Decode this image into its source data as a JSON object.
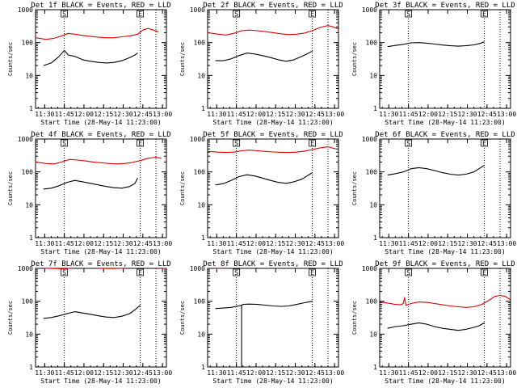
{
  "style": {
    "events_color": "#000000",
    "lld_color": "#e00000",
    "axis_color": "#000000",
    "background": "#ffffff"
  },
  "chart_data": [
    {
      "type": "line",
      "detector": "1f",
      "title": "Det 1f BLACK = Events, RED = LLD",
      "xlabel": "Start Time (28-May-14 11:23:00)",
      "ylabel": "Counts/sec",
      "y_scale": "log",
      "ylim": [
        1,
        1000
      ],
      "y_tick_labels": [
        "1",
        "10",
        "100",
        "1000"
      ],
      "xlim_min": [
        0,
        100
      ],
      "x_tick_labels": [
        "11:30",
        "11:45",
        "12:00",
        "12:15",
        "12:30",
        "12:45",
        "13:00"
      ],
      "x_tick_min": [
        7,
        22,
        37,
        52,
        67,
        82,
        97
      ],
      "markers": [
        {
          "label": "S",
          "x_min": 22
        },
        {
          "label": "E",
          "x_min": 80
        }
      ],
      "end_line_min": 92,
      "series": [
        {
          "name": "Events",
          "color": "#000000",
          "x_min": [
            6,
            12,
            18,
            22,
            25,
            30,
            36,
            42,
            48,
            54,
            60,
            66,
            72,
            76,
            78
          ],
          "y": [
            20,
            24,
            38,
            58,
            42,
            38,
            30,
            27,
            25,
            24,
            25,
            28,
            35,
            42,
            48
          ]
        },
        {
          "name": "LLD",
          "color": "#e00000",
          "x_min": [
            0,
            8,
            14,
            20,
            25,
            30,
            36,
            42,
            48,
            54,
            60,
            66,
            72,
            78,
            82,
            86,
            90,
            94
          ],
          "y": [
            140,
            125,
            135,
            160,
            190,
            180,
            165,
            155,
            145,
            140,
            140,
            150,
            160,
            180,
            240,
            270,
            240,
            210
          ]
        }
      ]
    },
    {
      "type": "line",
      "detector": "2f",
      "title": "Det 2f BLACK = Events, RED = LLD",
      "xlabel": "Start Time (28-May-14 11:23:00)",
      "ylabel": "Counts/sec",
      "y_scale": "log",
      "ylim": [
        1,
        1000
      ],
      "y_tick_labels": [
        "1",
        "10",
        "100",
        "1000"
      ],
      "xlim_min": [
        0,
        100
      ],
      "x_tick_labels": [
        "11:30",
        "11:45",
        "12:00",
        "12:15",
        "12:30",
        "12:45",
        "13:00"
      ],
      "x_tick_min": [
        7,
        22,
        37,
        52,
        67,
        82,
        97
      ],
      "markers": [
        {
          "label": "S",
          "x_min": 22
        },
        {
          "label": "E",
          "x_min": 80
        }
      ],
      "end_line_min": 92,
      "series": [
        {
          "name": "Events",
          "color": "#000000",
          "x_min": [
            6,
            12,
            18,
            24,
            30,
            36,
            42,
            48,
            54,
            60,
            66,
            72,
            76,
            80
          ],
          "y": [
            28,
            28,
            32,
            40,
            48,
            45,
            40,
            35,
            30,
            27,
            30,
            38,
            45,
            55
          ]
        },
        {
          "name": "LLD",
          "color": "#e00000",
          "x_min": [
            0,
            8,
            14,
            20,
            26,
            32,
            38,
            44,
            50,
            56,
            62,
            68,
            74,
            80,
            86,
            92,
            96,
            100
          ],
          "y": [
            200,
            180,
            170,
            190,
            230,
            240,
            230,
            215,
            200,
            185,
            175,
            180,
            195,
            230,
            290,
            330,
            300,
            260
          ]
        }
      ]
    },
    {
      "type": "line",
      "detector": "3f",
      "title": "Det 3f BLACK = Events, RED = LLD",
      "xlabel": "Start Time (28-May-14 11:23:00)",
      "ylabel": "Counts/sec",
      "y_scale": "log",
      "ylim": [
        1,
        1000
      ],
      "y_tick_labels": [
        "1",
        "10",
        "100",
        "1000"
      ],
      "xlim_min": [
        0,
        100
      ],
      "x_tick_labels": [
        "11:30",
        "11:45",
        "12:00",
        "12:15",
        "12:30",
        "12:45",
        "13:00"
      ],
      "x_tick_min": [
        7,
        22,
        37,
        52,
        67,
        82,
        97
      ],
      "markers": [
        {
          "label": "S",
          "x_min": 22
        },
        {
          "label": "E",
          "x_min": 80
        }
      ],
      "end_line_min": 92,
      "series": [
        {
          "name": "Events",
          "color": "#000000",
          "x_min": [
            6,
            12,
            18,
            24,
            30,
            36,
            42,
            48,
            54,
            60,
            66,
            72,
            76,
            80
          ],
          "y": [
            75,
            82,
            88,
            98,
            100,
            96,
            90,
            84,
            80,
            78,
            80,
            85,
            92,
            105
          ]
        }
      ]
    },
    {
      "type": "line",
      "detector": "4f",
      "title": "Det 4f BLACK = Events, RED = LLD",
      "xlabel": "Start Time (28-May-14 11:23:00)",
      "ylabel": "Counts/sec",
      "y_scale": "log",
      "ylim": [
        1,
        1000
      ],
      "y_tick_labels": [
        "1",
        "10",
        "100",
        "1000"
      ],
      "xlim_min": [
        0,
        100
      ],
      "x_tick_labels": [
        "11:30",
        "11:45",
        "12:00",
        "12:15",
        "12:30",
        "12:45",
        "13:00"
      ],
      "x_tick_min": [
        7,
        22,
        37,
        52,
        67,
        82,
        97
      ],
      "markers": [
        {
          "label": "S",
          "x_min": 22
        },
        {
          "label": "E",
          "x_min": 80
        }
      ],
      "end_line_min": 92,
      "series": [
        {
          "name": "Events",
          "color": "#000000",
          "x_min": [
            6,
            12,
            18,
            24,
            30,
            36,
            42,
            48,
            54,
            60,
            66,
            72,
            76,
            78
          ],
          "y": [
            30,
            32,
            38,
            48,
            55,
            50,
            45,
            40,
            36,
            33,
            32,
            36,
            45,
            65
          ]
        },
        {
          "name": "LLD",
          "color": "#e00000",
          "x_min": [
            0,
            8,
            14,
            20,
            26,
            32,
            38,
            44,
            50,
            56,
            62,
            68,
            74,
            80,
            86,
            92,
            96
          ],
          "y": [
            200,
            180,
            175,
            200,
            240,
            230,
            215,
            200,
            190,
            180,
            175,
            180,
            195,
            220,
            260,
            280,
            260
          ]
        }
      ]
    },
    {
      "type": "line",
      "detector": "5f",
      "title": "Det 5f BLACK = Events, RED = LLD",
      "xlabel": "Start Time (28-May-14 11:23:00)",
      "ylabel": "Counts/sec",
      "y_scale": "log",
      "ylim": [
        1,
        1000
      ],
      "y_tick_labels": [
        "1",
        "10",
        "100",
        "1000"
      ],
      "xlim_min": [
        0,
        100
      ],
      "x_tick_labels": [
        "11:30",
        "11:45",
        "12:00",
        "12:15",
        "12:30",
        "12:45",
        "13:00"
      ],
      "x_tick_min": [
        7,
        22,
        37,
        52,
        67,
        82,
        97
      ],
      "markers": [
        {
          "label": "S",
          "x_min": 22
        },
        {
          "label": "E",
          "x_min": 80
        }
      ],
      "end_line_min": 92,
      "series": [
        {
          "name": "Events",
          "color": "#000000",
          "x_min": [
            6,
            12,
            18,
            24,
            30,
            36,
            42,
            48,
            54,
            60,
            66,
            72,
            76,
            80
          ],
          "y": [
            40,
            44,
            55,
            72,
            82,
            75,
            65,
            55,
            48,
            45,
            50,
            60,
            75,
            95
          ]
        },
        {
          "name": "LLD",
          "color": "#e00000",
          "x_min": [
            0,
            8,
            14,
            20,
            26,
            32,
            38,
            44,
            50,
            56,
            62,
            68,
            74,
            80,
            86,
            92,
            98
          ],
          "y": [
            420,
            400,
            390,
            400,
            440,
            460,
            440,
            420,
            405,
            395,
            390,
            400,
            430,
            480,
            540,
            580,
            500
          ]
        }
      ]
    },
    {
      "type": "line",
      "detector": "6f",
      "title": "Det 6f BLACK = Events, RED = LLD",
      "xlabel": "Start Time (28-May-14 11:23:00)",
      "ylabel": "Counts/sec",
      "y_scale": "log",
      "ylim": [
        1,
        1000
      ],
      "y_tick_labels": [
        "1",
        "10",
        "100",
        "1000"
      ],
      "xlim_min": [
        0,
        100
      ],
      "x_tick_labels": [
        "11:30",
        "11:45",
        "12:00",
        "12:15",
        "12:30",
        "12:45",
        "13:00"
      ],
      "x_tick_min": [
        7,
        22,
        37,
        52,
        67,
        82,
        97
      ],
      "markers": [
        {
          "label": "S",
          "x_min": 22
        },
        {
          "label": "E",
          "x_min": 80
        }
      ],
      "end_line_min": 92,
      "series": [
        {
          "name": "Events",
          "color": "#000000",
          "x_min": [
            6,
            12,
            18,
            24,
            30,
            36,
            42,
            48,
            54,
            60,
            66,
            72,
            76,
            80
          ],
          "y": [
            80,
            88,
            100,
            125,
            135,
            125,
            110,
            95,
            85,
            80,
            85,
            100,
            125,
            160
          ]
        }
      ]
    },
    {
      "type": "line",
      "detector": "7f",
      "title": "Det 7f BLACK = Events, RED = LLD",
      "xlabel": "Start Time (28-May-14 11:23:00)",
      "ylabel": "Counts/sec",
      "y_scale": "log",
      "ylim": [
        1,
        1000
      ],
      "y_tick_labels": [
        "1",
        "10",
        "100",
        "1000"
      ],
      "xlim_min": [
        0,
        100
      ],
      "x_tick_labels": [
        "11:30",
        "11:45",
        "12:00",
        "12:15",
        "12:30",
        "12:45",
        "13:00"
      ],
      "x_tick_min": [
        7,
        22,
        37,
        52,
        67,
        82,
        97
      ],
      "markers": [
        {
          "label": "S",
          "x_min": 22
        },
        {
          "label": "E",
          "x_min": 80
        }
      ],
      "end_line_min": 92,
      "series": [
        {
          "name": "Events",
          "color": "#000000",
          "x_min": [
            6,
            12,
            18,
            24,
            30,
            36,
            42,
            48,
            54,
            60,
            66,
            72,
            76,
            80
          ],
          "y": [
            30,
            32,
            36,
            42,
            48,
            44,
            40,
            36,
            33,
            32,
            35,
            42,
            55,
            75
          ]
        },
        {
          "name": "LLD",
          "color": "#e00000",
          "x_min": [
            0,
            10,
            20,
            30,
            40,
            50,
            60,
            70,
            80,
            90,
            100
          ],
          "y": [
            1050,
            1000,
            980,
            1030,
            1080,
            1000,
            990,
            1020,
            1060,
            1040,
            1000
          ]
        }
      ]
    },
    {
      "type": "line",
      "detector": "8f",
      "title": "Det 8f BLACK = Events, RED = LLD",
      "xlabel": "Start Time (28-May-14 11:23:00)",
      "ylabel": "Counts/sec",
      "y_scale": "log",
      "ylim": [
        1,
        1000
      ],
      "y_tick_labels": [
        "1",
        "10",
        "100",
        "1000"
      ],
      "xlim_min": [
        0,
        100
      ],
      "x_tick_labels": [
        "11:30",
        "11:45",
        "12:00",
        "12:15",
        "12:30",
        "12:45",
        "13:00"
      ],
      "x_tick_min": [
        7,
        22,
        37,
        52,
        67,
        82,
        97
      ],
      "markers": [
        {
          "label": "S",
          "x_min": 22
        },
        {
          "label": "E",
          "x_min": 80
        }
      ],
      "end_line_min": 92,
      "series": [
        {
          "name": "Events",
          "color": "#000000",
          "x_min": [
            6,
            12,
            18,
            22,
            26,
            26,
            26,
            27,
            32,
            38,
            44,
            50,
            56,
            62,
            68,
            74,
            80
          ],
          "y": [
            60,
            62,
            65,
            70,
            75,
            1,
            75,
            80,
            82,
            80,
            76,
            72,
            70,
            72,
            80,
            90,
            100
          ]
        },
        {
          "name": "LLD",
          "color": "#e00000",
          "x_min": [
            0,
            6,
            12
          ],
          "y": [
            1050,
            1020,
            1000
          ]
        }
      ]
    },
    {
      "type": "line",
      "detector": "9f",
      "title": "Det 9f BLACK = Events, RED = LLD",
      "xlabel": "Start Time (28-May-14 11:23:00)",
      "ylabel": "Counts/sec",
      "y_scale": "log",
      "ylim": [
        1,
        1000
      ],
      "y_tick_labels": [
        "1",
        "10",
        "100",
        "1000"
      ],
      "xlim_min": [
        0,
        100
      ],
      "x_tick_labels": [
        "11:30",
        "11:45",
        "12:00",
        "12:15",
        "12:30",
        "12:45",
        "13:00"
      ],
      "x_tick_min": [
        7,
        22,
        37,
        52,
        67,
        82,
        97
      ],
      "markers": [
        {
          "label": "S",
          "x_min": 22
        },
        {
          "label": "E",
          "x_min": 80
        }
      ],
      "end_line_min": 92,
      "series": [
        {
          "name": "Events",
          "color": "#000000",
          "x_min": [
            6,
            12,
            18,
            24,
            30,
            36,
            42,
            48,
            54,
            60,
            66,
            72,
            76,
            80
          ],
          "y": [
            15,
            17,
            18,
            20,
            22,
            20,
            17,
            15,
            14,
            13,
            14,
            16,
            18,
            22
          ]
        },
        {
          "name": "LLD",
          "color": "#e00000",
          "x_min": [
            0,
            6,
            12,
            16,
            18,
            19,
            20,
            24,
            30,
            36,
            42,
            48,
            54,
            60,
            66,
            72,
            78,
            84,
            88,
            92,
            96,
            100
          ],
          "y": [
            95,
            88,
            80,
            78,
            85,
            130,
            75,
            85,
            95,
            92,
            85,
            78,
            72,
            68,
            65,
            68,
            80,
            110,
            140,
            150,
            140,
            110
          ]
        }
      ]
    }
  ]
}
